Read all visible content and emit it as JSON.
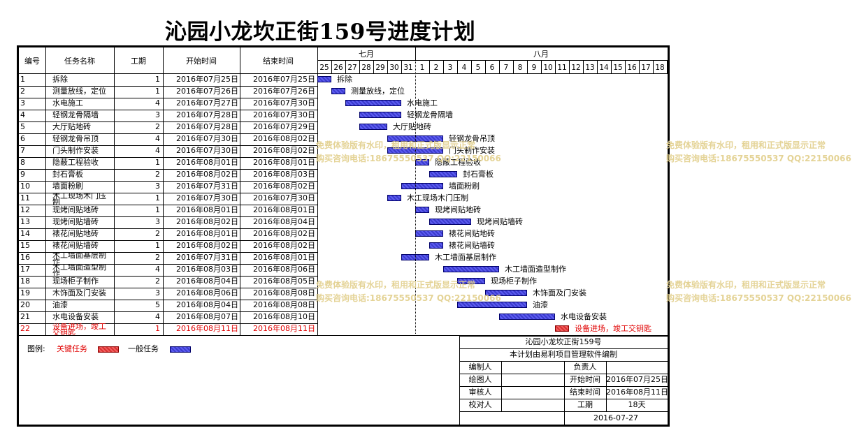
{
  "title": "沁园小龙坎正街159号进度计划",
  "columns": {
    "id": "编号",
    "name": "任务名称",
    "duration": "工期",
    "start": "开始时间",
    "end": "结束时间"
  },
  "months": [
    "七月",
    "八月"
  ],
  "days": [
    "25",
    "26",
    "27",
    "28",
    "29",
    "30",
    "31",
    "1",
    "2",
    "3",
    "4",
    "5",
    "6",
    "7",
    "8",
    "9",
    "10",
    "11",
    "12",
    "13",
    "14",
    "15",
    "16",
    "17",
    "18"
  ],
  "tasks": [
    {
      "id": "1",
      "name": "拆除",
      "duration": "1",
      "start": "2016年07月25日",
      "end": "2016年07月25日",
      "bar_label": "拆除",
      "offset": 0,
      "span": 1,
      "critical": false
    },
    {
      "id": "2",
      "name": "测量放线，定位",
      "duration": "1",
      "start": "2016年07月26日",
      "end": "2016年07月26日",
      "bar_label": "测量放线，定位",
      "offset": 1,
      "span": 1,
      "critical": false
    },
    {
      "id": "3",
      "name": "水电施工",
      "duration": "4",
      "start": "2016年07月27日",
      "end": "2016年07月30日",
      "bar_label": "水电施工",
      "offset": 2,
      "span": 4,
      "critical": false
    },
    {
      "id": "4",
      "name": "轻钢龙骨隔墙",
      "duration": "3",
      "start": "2016年07月28日",
      "end": "2016年07月30日",
      "bar_label": "轻钢龙骨隔墙",
      "offset": 3,
      "span": 3,
      "critical": false
    },
    {
      "id": "5",
      "name": "大厅贴地砖",
      "duration": "2",
      "start": "2016年07月28日",
      "end": "2016年07月29日",
      "bar_label": "大厅贴地砖",
      "offset": 3,
      "span": 2,
      "critical": false
    },
    {
      "id": "6",
      "name": "轻钢龙骨吊顶",
      "duration": "4",
      "start": "2016年07月30日",
      "end": "2016年08月02日",
      "bar_label": "轻钢龙骨吊顶",
      "offset": 5,
      "span": 4,
      "critical": false
    },
    {
      "id": "7",
      "name": "门头制作安装",
      "duration": "4",
      "start": "2016年07月30日",
      "end": "2016年08月02日",
      "bar_label": "门头制作安装",
      "offset": 5,
      "span": 4,
      "critical": false
    },
    {
      "id": "8",
      "name": "隐蔽工程验收",
      "duration": "1",
      "start": "2016年08月01日",
      "end": "2016年08月01日",
      "bar_label": "隐蔽工程验收",
      "offset": 7,
      "span": 1,
      "critical": false
    },
    {
      "id": "9",
      "name": "封石膏板",
      "duration": "2",
      "start": "2016年08月02日",
      "end": "2016年08月03日",
      "bar_label": "封石膏板",
      "offset": 8,
      "span": 2,
      "critical": false
    },
    {
      "id": "10",
      "name": "墙面粉刷",
      "duration": "3",
      "start": "2016年07月31日",
      "end": "2016年08月02日",
      "bar_label": "墙面粉刷",
      "offset": 6,
      "span": 3,
      "critical": false
    },
    {
      "id": "11",
      "name": "木工现场木门压制",
      "duration": "1",
      "start": "2016年07月30日",
      "end": "2016年07月30日",
      "bar_label": "木工现场木门压制",
      "offset": 5,
      "span": 1,
      "critical": false
    },
    {
      "id": "12",
      "name": "现烤间贴地砖",
      "duration": "1",
      "start": "2016年08月01日",
      "end": "2016年08月01日",
      "bar_label": "现烤间贴地砖",
      "offset": 7,
      "span": 1,
      "critical": false
    },
    {
      "id": "13",
      "name": "现烤间贴墙砖",
      "duration": "3",
      "start": "2016年08月02日",
      "end": "2016年08月04日",
      "bar_label": "现烤间贴墙砖",
      "offset": 8,
      "span": 3,
      "critical": false
    },
    {
      "id": "14",
      "name": "裱花间贴地砖",
      "duration": "2",
      "start": "2016年08月01日",
      "end": "2016年08月02日",
      "bar_label": "裱花间贴地砖",
      "offset": 7,
      "span": 2,
      "critical": false
    },
    {
      "id": "15",
      "name": "裱花间贴墙砖",
      "duration": "1",
      "start": "2016年08月02日",
      "end": "2016年08月02日",
      "bar_label": "裱花间贴墙砖",
      "offset": 8,
      "span": 1,
      "critical": false
    },
    {
      "id": "16",
      "name": "木工墙面基层制作",
      "duration": "2",
      "start": "2016年07月31日",
      "end": "2016年08月01日",
      "bar_label": "木工墙面基层制作",
      "offset": 6,
      "span": 2,
      "critical": false
    },
    {
      "id": "17",
      "name": "木工墙面造型制作",
      "duration": "4",
      "start": "2016年08月03日",
      "end": "2016年08月06日",
      "bar_label": "木工墙面造型制作",
      "offset": 9,
      "span": 4,
      "critical": false
    },
    {
      "id": "18",
      "name": "现场柜子制作",
      "duration": "2",
      "start": "2016年08月04日",
      "end": "2016年08月05日",
      "bar_label": "现场柜子制作",
      "offset": 10,
      "span": 2,
      "critical": false
    },
    {
      "id": "19",
      "name": "木饰面及门安装",
      "duration": "3",
      "start": "2016年08月06日",
      "end": "2016年08月08日",
      "bar_label": "木饰面及门安装",
      "offset": 12,
      "span": 3,
      "critical": false
    },
    {
      "id": "20",
      "name": "油漆",
      "duration": "5",
      "start": "2016年08月04日",
      "end": "2016年08月08日",
      "bar_label": "油漆",
      "offset": 10,
      "span": 5,
      "critical": false
    },
    {
      "id": "21",
      "name": "水电设备安装",
      "duration": "4",
      "start": "2016年08月07日",
      "end": "2016年08月10日",
      "bar_label": "水电设备安装",
      "offset": 13,
      "span": 4,
      "critical": false
    },
    {
      "id": "22",
      "name": "设备进场，竣工交钥匙",
      "duration": "1",
      "start": "2016年08月11日",
      "end": "2016年08月11日",
      "bar_label": "设备进场，竣工交钥匙",
      "offset": 17,
      "span": 1,
      "critical": true
    }
  ],
  "legend": {
    "label": "图例:",
    "critical": "关键任务",
    "normal": "一般任务",
    "critical_color": "#d83030",
    "normal_color": "#3b3bcc"
  },
  "info": {
    "project": "沁园小龙坎正街159号",
    "note": "本计划由易利项目管理软件编制",
    "editor_label": "编制人",
    "editor": "",
    "owner_label": "负责人",
    "owner": "",
    "drawer_label": "绘图人",
    "drawer": "",
    "start_label": "开始时间",
    "start": "2016年07月25日",
    "reviewer_label": "审核人",
    "reviewer": "",
    "end_label": "结束时间",
    "end": "2016年08月11日",
    "checker_label": "校对人",
    "checker": "",
    "duration_label": "工期",
    "duration": "18天",
    "date": "2016-07-27"
  },
  "watermark": {
    "line1": "免费体验版有水印，租用和正式版显示正常",
    "line2": "购买咨询电话:18675550537 QQ:22150066"
  }
}
